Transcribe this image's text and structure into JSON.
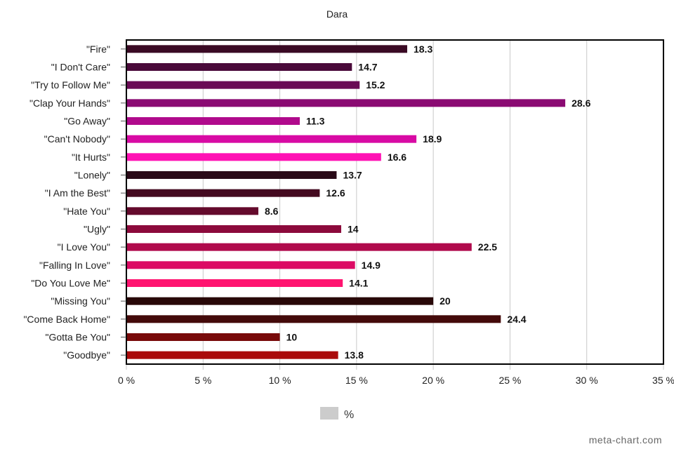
{
  "watermark": "meta-chart.com",
  "chart_data": {
    "type": "bar",
    "orientation": "horizontal",
    "title": "Dara",
    "xlabel": "",
    "ylabel": "",
    "xlim": [
      0,
      35
    ],
    "x_ticks": [
      "0 %",
      "5 %",
      "10 %",
      "15 %",
      "20 %",
      "25 %",
      "30 %",
      "35 %"
    ],
    "grid": true,
    "legend_position": "bottom",
    "legend": [
      {
        "label": "%",
        "color": "#cccccc"
      }
    ],
    "categories": [
      "\"Fire\"",
      "\"I Don't Care\"",
      "\"Try to Follow Me\"",
      "\"Clap Your Hands\"",
      "\"Go Away\"",
      "\"Can't Nobody\"",
      "\"It Hurts\"",
      "\"Lonely\"",
      "\"I Am the Best\"",
      "\"Hate You\"",
      "\"Ugly\"",
      "\"I Love You\"",
      "\"Falling In Love\"",
      "\"Do You Love Me\"",
      "\"Missing You\"",
      "\"Come Back Home\"",
      "\"Gotta Be You\"",
      "\"Goodbye\""
    ],
    "values": [
      18.3,
      14.7,
      15.2,
      28.6,
      11.3,
      18.9,
      16.6,
      13.7,
      12.6,
      8.6,
      14,
      22.5,
      14.9,
      14.1,
      20,
      24.4,
      10,
      13.8
    ],
    "value_labels": [
      "18.3",
      "14.7",
      "15.2",
      "28.6",
      "11.3",
      "18.9",
      "16.6",
      "13.7",
      "12.6",
      "8.6",
      "14",
      "22.5",
      "14.9",
      "14.1",
      "20",
      "24.4",
      "10",
      "13.8"
    ],
    "colors": [
      "#3a0a24",
      "#4a0a3a",
      "#6a0a55",
      "#8a0a72",
      "#b00a8c",
      "#d80aa4",
      "#ff12b4",
      "#2a0a18",
      "#440a20",
      "#640a2c",
      "#8c0a3c",
      "#b00a4c",
      "#dc0a64",
      "#ff1470",
      "#280808",
      "#440a0a",
      "#780a0a",
      "#aa0a0a"
    ]
  }
}
